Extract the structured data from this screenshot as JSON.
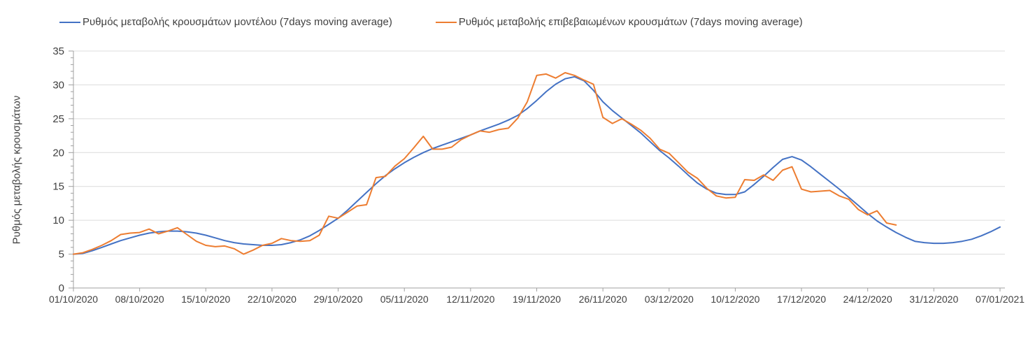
{
  "legend": [
    {
      "label": "Ρυθμός μεταβολής κρουσμάτων μοντέλου (7days moving average)",
      "color": "#4472C4"
    },
    {
      "label": "Ρυθμός μεταβολής επιβεβαιωμένων κρουσμάτων (7days moving average)",
      "color": "#ED7D31"
    }
  ],
  "y_axis": {
    "title": "Ρυθμός μεταβολής κρουσμάτων",
    "tick_labels": [
      "0",
      "5",
      "10",
      "15",
      "20",
      "25",
      "30",
      "35"
    ]
  },
  "x_axis": {
    "tick_labels": [
      "01/10/2020",
      "08/10/2020",
      "15/10/2020",
      "22/10/2020",
      "29/10/2020",
      "05/11/2020",
      "12/11/2020",
      "19/11/2020",
      "26/11/2020",
      "03/12/2020",
      "10/12/2020",
      "17/12/2020",
      "24/12/2020",
      "31/12/2020",
      "07/01/2021"
    ]
  },
  "colors": {
    "series_model": "#4472C4",
    "series_confirmed": "#ED7D31",
    "gridline": "#DCDCDC",
    "axis": "#A0A0A0",
    "text": "#404040",
    "background": "#FFFFFF"
  },
  "chart_data": {
    "type": "line",
    "title": "",
    "xlabel": "",
    "ylabel": "Ρυθμός μεταβολής κρουσμάτων",
    "ylim": [
      0,
      35
    ],
    "y_major_tick_step": 5,
    "y_minor_tick_step": 1,
    "grid": "horizontal-major",
    "legend_position": "top",
    "x_resolution": "daily (values are consecutive days)",
    "x_start_label": "01/10/2020",
    "x_end_label": "07/01/2021",
    "x_tick_every_days": 7,
    "x_tick_labels": [
      "01/10/2020",
      "08/10/2020",
      "15/10/2020",
      "22/10/2020",
      "29/10/2020",
      "05/11/2020",
      "12/11/2020",
      "19/11/2020",
      "26/11/2020",
      "03/12/2020",
      "10/12/2020",
      "17/12/2020",
      "24/12/2020",
      "31/12/2020",
      "07/01/2021"
    ],
    "series": [
      {
        "name": "Ρυθμός μεταβολής κρουσμάτων μοντέλου (7days moving average)",
        "color": "#4472C4",
        "values": [
          5.0,
          5.1,
          5.5,
          6.0,
          6.5,
          7.0,
          7.4,
          7.8,
          8.1,
          8.3,
          8.4,
          8.4,
          8.3,
          8.1,
          7.8,
          7.4,
          7.0,
          6.7,
          6.5,
          6.4,
          6.3,
          6.3,
          6.4,
          6.7,
          7.1,
          7.7,
          8.5,
          9.4,
          10.3,
          11.5,
          12.8,
          14.1,
          15.4,
          16.6,
          17.6,
          18.5,
          19.3,
          20.0,
          20.6,
          21.1,
          21.6,
          22.1,
          22.6,
          23.2,
          23.7,
          24.2,
          24.8,
          25.5,
          26.5,
          27.7,
          29.0,
          30.1,
          30.9,
          31.2,
          30.6,
          29.2,
          27.5,
          26.2,
          25.1,
          24.0,
          22.9,
          21.6,
          20.3,
          19.2,
          18.0,
          16.7,
          15.5,
          14.6,
          14.0,
          13.8,
          13.8,
          14.2,
          15.3,
          16.5,
          17.8,
          19.0,
          19.4,
          18.9,
          17.9,
          16.8,
          15.7,
          14.6,
          13.4,
          12.2,
          11.0,
          9.9,
          9.0,
          8.2,
          7.5,
          6.9,
          6.7,
          6.6,
          6.6,
          6.7,
          6.9,
          7.2,
          7.7,
          8.3,
          9.0
        ]
      },
      {
        "name": "Ρυθμός μεταβολής επιβεβαιωμένων κρουσμάτων (7days moving average)",
        "color": "#ED7D31",
        "values": [
          5.0,
          5.2,
          5.7,
          6.3,
          7.0,
          7.9,
          8.1,
          8.2,
          8.7,
          8.0,
          8.4,
          8.9,
          7.9,
          6.9,
          6.3,
          6.1,
          6.2,
          5.8,
          5.0,
          5.6,
          6.3,
          6.6,
          7.3,
          7.0,
          6.9,
          7.0,
          7.8,
          10.6,
          10.3,
          11.2,
          12.1,
          12.3,
          16.3,
          16.5,
          18.0,
          19.1,
          20.7,
          22.4,
          20.5,
          20.5,
          20.8,
          21.9,
          22.6,
          23.2,
          23.0,
          23.4,
          23.6,
          25.1,
          27.5,
          31.4,
          31.6,
          31.0,
          31.8,
          31.4,
          30.7,
          30.1,
          25.2,
          24.3,
          25.0,
          24.2,
          23.3,
          22.1,
          20.5,
          19.9,
          18.5,
          17.1,
          16.2,
          14.7,
          13.6,
          13.3,
          13.4,
          16.0,
          15.9,
          16.7,
          15.9,
          17.4,
          17.9,
          14.6,
          14.2,
          14.3,
          14.4,
          13.6,
          13.1,
          11.6,
          10.8,
          11.4,
          9.6,
          9.3
        ]
      }
    ]
  }
}
